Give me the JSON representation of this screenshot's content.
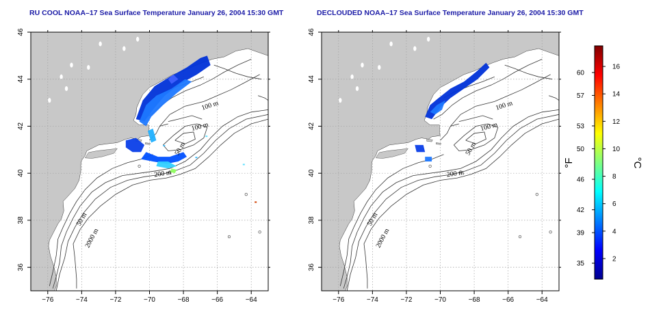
{
  "colors": {
    "land": "#c8c8c8",
    "ocean": "#ffffff",
    "contour": "#333333",
    "grid": "#a0a0a0",
    "title": "#1a1aa6"
  },
  "panels": [
    {
      "id": "left",
      "title": "RU COOL NOAA–17 Sea Surface Temperature January 26, 2004 15:30 GMT"
    },
    {
      "id": "right",
      "title": "DECLOUDED NOAA–17 Sea Surface Temperature January 26, 2004 15:30 GMT"
    }
  ],
  "axes": {
    "lon_range": [
      -77,
      -63
    ],
    "lat_range": [
      35,
      46
    ],
    "x_ticks": [
      -76,
      -74,
      -72,
      -70,
      -68,
      -66,
      -64
    ],
    "x_tick_labels": [
      "−76",
      "−74",
      "−72",
      "−70",
      "−68",
      "−66",
      "−64"
    ],
    "y_ticks": [
      36,
      38,
      40,
      42,
      44,
      46
    ],
    "y_tick_labels": [
      "36",
      "38",
      "40",
      "42",
      "44",
      "46"
    ]
  },
  "contour_labels": {
    "left": [
      {
        "text": "100 m",
        "lon": -66.4,
        "lat": 42.8,
        "rot": -18
      },
      {
        "text": "100 m",
        "lon": -67.0,
        "lat": 41.9,
        "rot": -15
      },
      {
        "text": "50 m",
        "lon": -68.1,
        "lat": 41.0,
        "rot": -60
      },
      {
        "text": "200 m",
        "lon": -69.2,
        "lat": 39.9,
        "rot": -8
      },
      {
        "text": "50 m",
        "lon": -73.9,
        "lat": 38.0,
        "rot": -60
      },
      {
        "text": "2000 m",
        "lon": -73.3,
        "lat": 37.2,
        "rot": -62
      }
    ],
    "right": [
      {
        "text": "100 m",
        "lon": -66.2,
        "lat": 42.8,
        "rot": -18
      },
      {
        "text": "100 m",
        "lon": -67.1,
        "lat": 41.9,
        "rot": -15
      },
      {
        "text": "50 m",
        "lon": -68.1,
        "lat": 41.0,
        "rot": -60
      },
      {
        "text": "200 m",
        "lon": -69.1,
        "lat": 39.9,
        "rot": -8
      },
      {
        "text": "50 m",
        "lon": -73.9,
        "lat": 38.0,
        "rot": -60
      },
      {
        "text": "2000 m",
        "lon": -73.3,
        "lat": 37.2,
        "rot": -62
      }
    ]
  },
  "colorbar": {
    "colors": [
      "#00008f",
      "#0000ff",
      "#0080ff",
      "#00ffff",
      "#80ff80",
      "#ffff00",
      "#ff8000",
      "#ff0000",
      "#800000"
    ],
    "range_c": [
      0.5,
      17.5
    ],
    "c_ticks": [
      2,
      4,
      6,
      8,
      10,
      12,
      14,
      16
    ],
    "c_tick_labels": [
      "2",
      "4",
      "6",
      "8",
      "10",
      "12",
      "14",
      "16"
    ],
    "f_ticks": [
      35,
      39,
      42,
      46,
      50,
      53,
      57,
      60
    ],
    "f_tick_labels": [
      "35",
      "39",
      "42",
      "46",
      "50",
      "53",
      "57",
      "60"
    ],
    "f_unit": "°F",
    "c_unit": "°C"
  },
  "sst_patches": {
    "left": [
      {
        "color": "#0032d8",
        "points": [
          [
            -70.8,
            42.3
          ],
          [
            -70.4,
            43.1
          ],
          [
            -69.7,
            43.7
          ],
          [
            -68.8,
            44.1
          ],
          [
            -67.8,
            44.5
          ],
          [
            -67.0,
            44.9
          ],
          [
            -66.6,
            45.0
          ],
          [
            -66.4,
            44.6
          ],
          [
            -67.2,
            44.2
          ],
          [
            -68.2,
            43.8
          ],
          [
            -69.1,
            43.3
          ],
          [
            -69.8,
            42.7
          ],
          [
            -70.3,
            42.2
          ]
        ]
      },
      {
        "color": "#1e78ff",
        "points": [
          [
            -70.6,
            42.2
          ],
          [
            -70.2,
            42.9
          ],
          [
            -69.6,
            43.3
          ],
          [
            -68.7,
            43.6
          ],
          [
            -67.9,
            44.0
          ],
          [
            -67.5,
            43.9
          ],
          [
            -68.4,
            43.4
          ],
          [
            -69.2,
            42.9
          ],
          [
            -69.9,
            42.4
          ],
          [
            -70.2,
            42.0
          ]
        ]
      },
      {
        "color": "#0a3ee8",
        "points": [
          [
            -71.4,
            41.4
          ],
          [
            -70.8,
            41.5
          ],
          [
            -70.3,
            41.2
          ],
          [
            -70.5,
            40.9
          ],
          [
            -71.0,
            40.9
          ],
          [
            -71.4,
            41.1
          ]
        ]
      },
      {
        "color": "#0050ff",
        "points": [
          [
            -70.5,
            40.6
          ],
          [
            -69.8,
            40.5
          ],
          [
            -69.0,
            40.4
          ],
          [
            -68.3,
            40.5
          ],
          [
            -67.8,
            40.7
          ],
          [
            -68.0,
            40.9
          ],
          [
            -68.8,
            40.7
          ],
          [
            -69.5,
            40.7
          ],
          [
            -70.2,
            40.9
          ]
        ]
      },
      {
        "color": "#30d0ff",
        "points": [
          [
            -69.6,
            40.3
          ],
          [
            -68.9,
            40.2
          ],
          [
            -68.4,
            40.3
          ],
          [
            -68.9,
            40.5
          ],
          [
            -69.5,
            40.5
          ]
        ]
      },
      {
        "color": "#90ff60",
        "points": [
          [
            -68.8,
            40.05
          ],
          [
            -68.5,
            40.0
          ],
          [
            -68.4,
            40.15
          ],
          [
            -68.7,
            40.2
          ]
        ]
      },
      {
        "color": "#20b0ff",
        "points": [
          [
            -70.1,
            41.8
          ],
          [
            -69.8,
            41.9
          ],
          [
            -69.6,
            41.4
          ],
          [
            -69.9,
            41.3
          ]
        ]
      },
      {
        "color": "#4060ff",
        "points": [
          [
            -68.9,
            44.0
          ],
          [
            -68.6,
            44.2
          ],
          [
            -68.3,
            44.0
          ],
          [
            -68.7,
            43.8
          ]
        ]
      }
    ],
    "right": [
      {
        "color": "#0032d8",
        "points": [
          [
            -70.9,
            42.4
          ],
          [
            -70.6,
            42.9
          ],
          [
            -70.1,
            43.2
          ],
          [
            -69.4,
            43.6
          ],
          [
            -68.6,
            43.9
          ],
          [
            -67.9,
            44.3
          ],
          [
            -67.3,
            44.7
          ],
          [
            -67.1,
            44.5
          ],
          [
            -67.8,
            44.0
          ],
          [
            -68.6,
            43.6
          ],
          [
            -69.4,
            43.2
          ],
          [
            -70.0,
            42.8
          ],
          [
            -70.5,
            42.3
          ]
        ]
      },
      {
        "color": "#1e78ff",
        "points": [
          [
            -70.6,
            42.6
          ],
          [
            -70.2,
            42.9
          ],
          [
            -69.7,
            43.1
          ],
          [
            -69.9,
            42.7
          ],
          [
            -70.3,
            42.5
          ]
        ]
      },
      {
        "color": "#0a3ee8",
        "points": [
          [
            -71.5,
            41.2
          ],
          [
            -71.0,
            41.2
          ],
          [
            -70.9,
            40.9
          ],
          [
            -71.4,
            40.9
          ]
        ]
      },
      {
        "color": "#1e78ff",
        "points": [
          [
            -70.9,
            40.7
          ],
          [
            -70.5,
            40.7
          ],
          [
            -70.5,
            40.5
          ],
          [
            -70.9,
            40.5
          ]
        ]
      }
    ]
  }
}
